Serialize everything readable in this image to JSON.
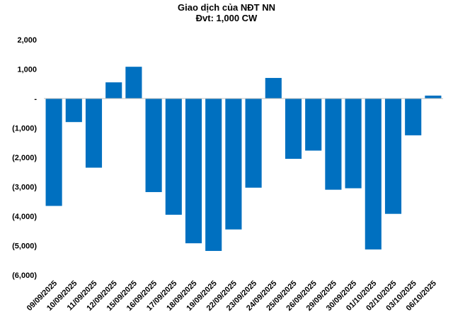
{
  "chart_data": {
    "type": "bar",
    "title": "Giao dịch của NĐT NN",
    "subtitle": "Đvt: 1,000 CW",
    "xlabel": "",
    "ylabel": "",
    "ylim": [
      -6000,
      2000
    ],
    "yticks": [
      2000,
      1000,
      0,
      -1000,
      -2000,
      -3000,
      -4000,
      -5000,
      -6000
    ],
    "ytick_labels": [
      "2,000",
      "1,000",
      "-",
      "(1,000)",
      "(2,000)",
      "(3,000)",
      "(4,000)",
      "(5,000)",
      "(6,000)"
    ],
    "grid": false,
    "legend": "none",
    "bar_color": "#0070C0",
    "categories": [
      "09/09/2025",
      "10/09/2025",
      "11/09/2025",
      "12/09/2025",
      "15/09/2025",
      "16/09/2025",
      "17/09/2025",
      "18/09/2025",
      "19/09/2025",
      "22/09/2025",
      "23/09/2025",
      "24/09/2025",
      "25/09/2025",
      "26/09/2025",
      "29/09/2025",
      "30/09/2025",
      "01/10/2025",
      "02/10/2025",
      "03/10/2025",
      "06/10/2025"
    ],
    "values": [
      -3650,
      -800,
      -2350,
      550,
      1080,
      -3180,
      -3950,
      -4920,
      -5180,
      -4450,
      -3030,
      700,
      -2050,
      -1770,
      -3100,
      -3050,
      -5130,
      -3920,
      -1250,
      100
    ]
  }
}
